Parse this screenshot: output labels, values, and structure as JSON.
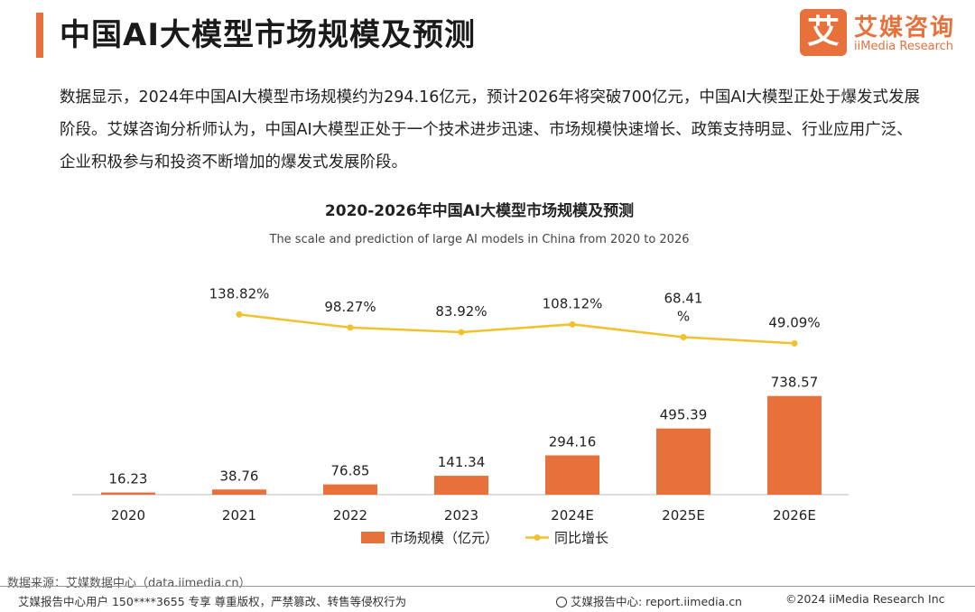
{
  "header": {
    "title": "中国AI大模型市场规模及预测",
    "logo_mark": "艾",
    "logo_cn": "艾媒咨询",
    "logo_en": "iiMedia Research"
  },
  "intro": "数据显示，2024年中国AI大模型市场规模约为294.16亿元，预计2026年将突破700亿元，中国AI大模型正处于爆发式发展阶段。艾媒咨询分析师认为，中国AI大模型正处于一个技术进步迅速、市场规模快速增长、政策支持明显、行业应用广泛、企业积极参与和投资不断增加的爆发式发展阶段。",
  "chart_data": {
    "type": "bar",
    "title": "2020-2026年中国AI大模型市场规模及预测",
    "subtitle": "The scale and prediction of large AI models in China from 2020 to 2026",
    "categories": [
      "2020",
      "2021",
      "2022",
      "2023",
      "2024E",
      "2025E",
      "2026E"
    ],
    "series": [
      {
        "name": "市场规模（亿元）",
        "type": "bar",
        "values": [
          16.23,
          38.76,
          76.85,
          141.34,
          294.16,
          495.39,
          738.57
        ],
        "labels": [
          "16.23",
          "38.76",
          "76.85",
          "141.34",
          "294.16",
          "495.39",
          "738.57"
        ]
      },
      {
        "name": "同比增长",
        "type": "line",
        "values": [
          null,
          138.82,
          98.27,
          83.92,
          108.12,
          68.41,
          49.09
        ],
        "labels": [
          "",
          "138.82%",
          "98.27%",
          "83.92%",
          "108.12%",
          "68.41\n%",
          "49.09%"
        ]
      }
    ],
    "bar_ylim": [
      0,
      750
    ],
    "line_ylim": [
      0,
      300
    ],
    "legend_position": "bottom",
    "grid": false,
    "colors": {
      "bar": "#e8703a",
      "line": "#f2c12e"
    }
  },
  "footer": {
    "source": "数据来源：艾媒数据中心（data.iimedia.cn）",
    "user_notice": "艾媒报告中心用户 150****3655 专享 尊重版权，严禁篡改、转售等侵权行为",
    "report_center": "艾媒报告中心: report.iimedia.cn",
    "copyright": "©2024  iiMedia Research  Inc"
  }
}
